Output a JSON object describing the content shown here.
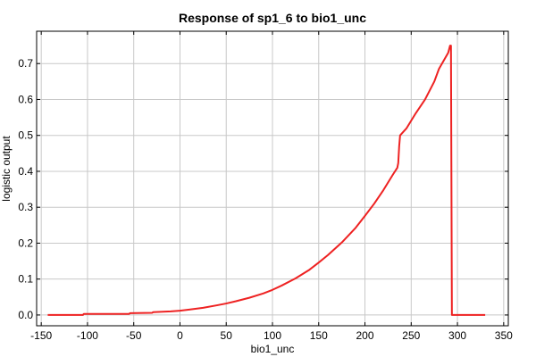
{
  "chart_data": {
    "type": "line",
    "title": "Response of sp1_6 to bio1_unc",
    "xlabel": "bio1_unc",
    "ylabel": "logistic output",
    "xlim": [
      -155,
      355
    ],
    "ylim": [
      -0.03,
      0.79
    ],
    "xticks": [
      -150,
      -100,
      -50,
      0,
      50,
      100,
      150,
      200,
      250,
      300,
      350
    ],
    "yticks": [
      0.0,
      0.1,
      0.2,
      0.3,
      0.4,
      0.5,
      0.6,
      0.7
    ],
    "ytick_labels": [
      "0.0",
      "0.1",
      "0.2",
      "0.3",
      "0.4",
      "0.5",
      "0.6",
      "0.7"
    ],
    "grid": true,
    "series_color": "#ee2222",
    "series": [
      {
        "x": [
          -143,
          -105,
          -104,
          -55,
          -54,
          -30,
          -29,
          -10,
          0,
          10,
          25,
          40,
          50,
          60,
          75,
          90,
          100,
          110,
          125,
          140,
          150,
          160,
          175,
          190,
          200,
          210,
          220,
          230,
          235,
          236,
          237,
          238,
          245,
          255,
          265,
          275,
          280,
          290,
          292,
          293,
          294,
          330
        ],
        "y": [
          0.0,
          0.0,
          0.003,
          0.003,
          0.005,
          0.006,
          0.008,
          0.01,
          0.012,
          0.015,
          0.02,
          0.027,
          0.032,
          0.038,
          0.048,
          0.06,
          0.07,
          0.082,
          0.102,
          0.126,
          0.146,
          0.167,
          0.202,
          0.243,
          0.276,
          0.31,
          0.348,
          0.39,
          0.41,
          0.423,
          0.47,
          0.5,
          0.52,
          0.562,
          0.6,
          0.65,
          0.685,
          0.73,
          0.75,
          0.75,
          0.0,
          0.0
        ]
      }
    ]
  }
}
